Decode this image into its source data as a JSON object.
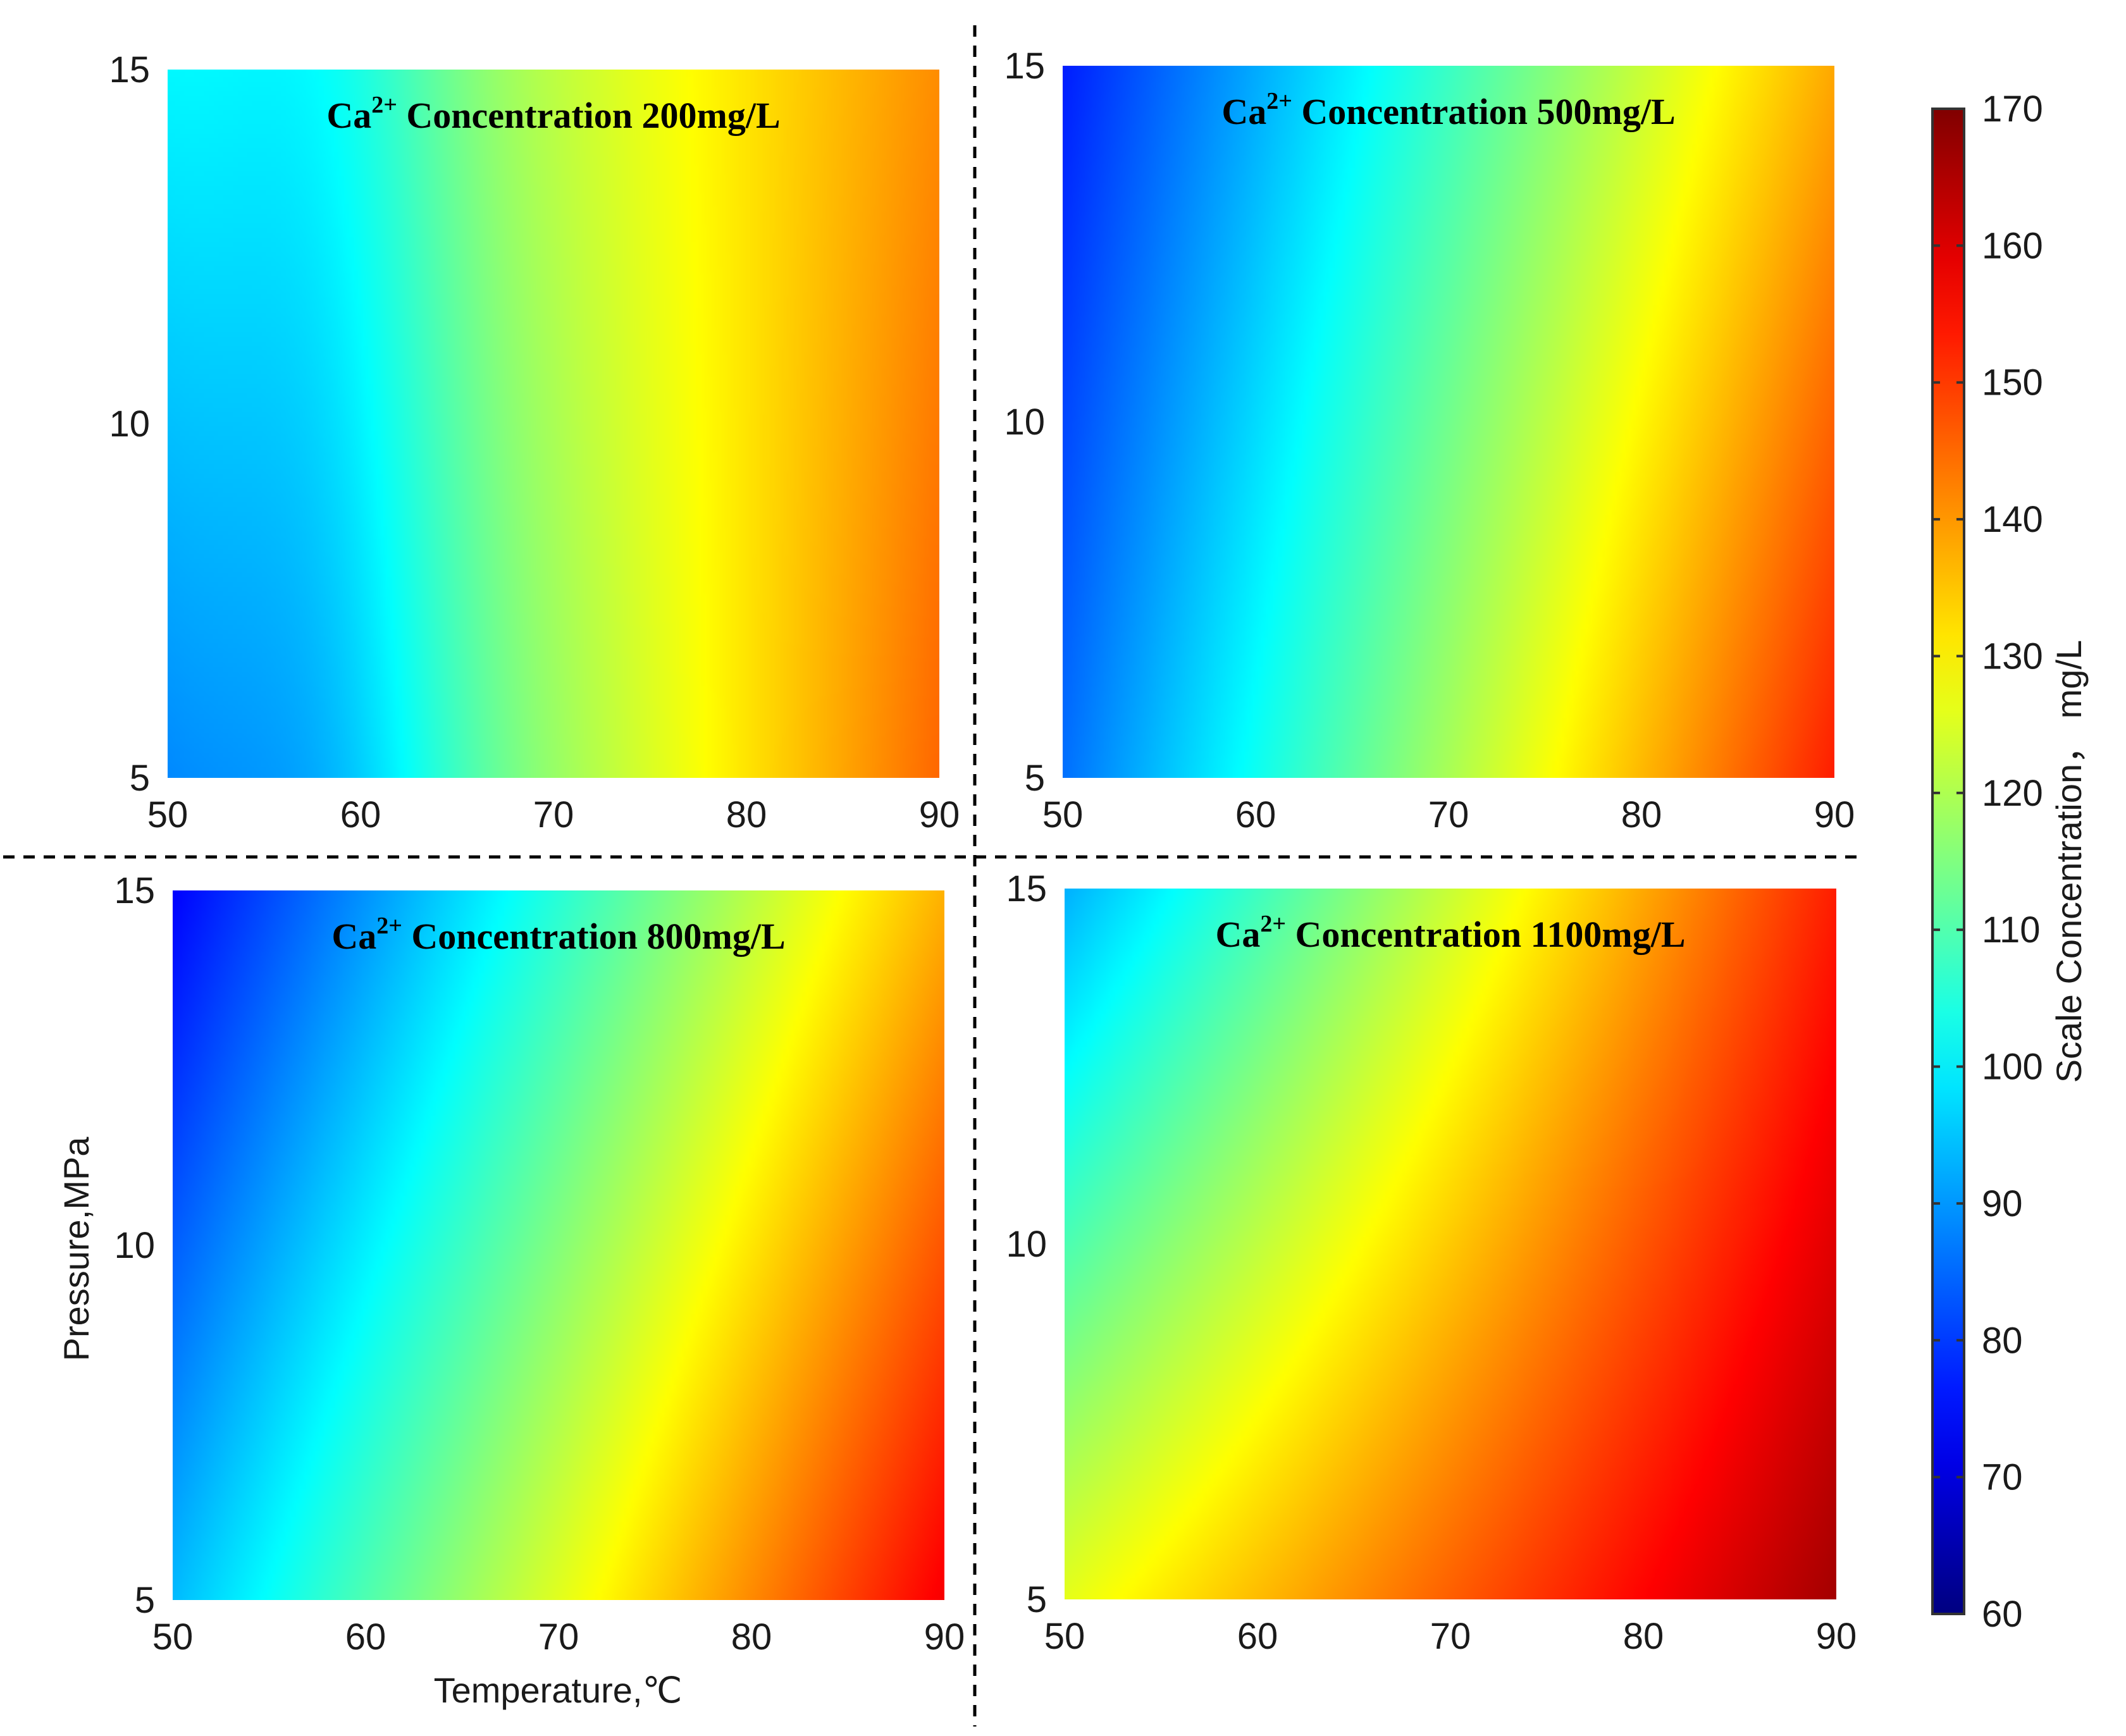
{
  "chart_data": {
    "type": "heatmap",
    "colormap": "jet",
    "colorbar": {
      "label": "Scale Concentration， mg/L",
      "range": [
        60,
        170
      ],
      "ticks": [
        "60",
        "70",
        "80",
        "90",
        "100",
        "110",
        "120",
        "130",
        "140",
        "150",
        "160",
        "170"
      ]
    },
    "x_ticks": [
      "50",
      "60",
      "70",
      "80",
      "90"
    ],
    "y_ticks": [
      "5",
      "10",
      "15"
    ],
    "xlim": [
      50,
      90
    ],
    "ylim": [
      5,
      15
    ],
    "xlabel": "Temperature,℃",
    "ylabel": "Pressure,MPa",
    "panels": [
      {
        "title_prefix": "Ca",
        "title_sup": "2+",
        "title_rest": " Concentration  200mg/L",
        "corner_values": {
          "x50_p15": 103,
          "x90_p15": 141,
          "x50_p5": 91,
          "x90_p5": 145
        },
        "note": "vertical bands; cyan near 57-60°C, yellow near 77°C"
      },
      {
        "title_prefix": "Ca",
        "title_sup": "2+",
        "title_rest": " Concentration  500mg/L",
        "corner_values": {
          "x50_p15": 77,
          "x90_p15": 138,
          "x50_p5": 86,
          "x90_p5": 153
        }
      },
      {
        "title_prefix": "Ca",
        "title_sup": "2+",
        "title_rest": " Concentration  800mg/L",
        "corner_values": {
          "x50_p15": 74,
          "x90_p15": 137,
          "x50_p5": 94,
          "x90_p5": 157
        }
      },
      {
        "title_prefix": "Ca",
        "title_sup": "2+",
        "title_rest": " Concentration  1100mg/L",
        "corner_values": {
          "x50_p15": 93,
          "x90_p15": 153,
          "x50_p5": 126,
          "x90_p5": 166
        }
      }
    ]
  }
}
